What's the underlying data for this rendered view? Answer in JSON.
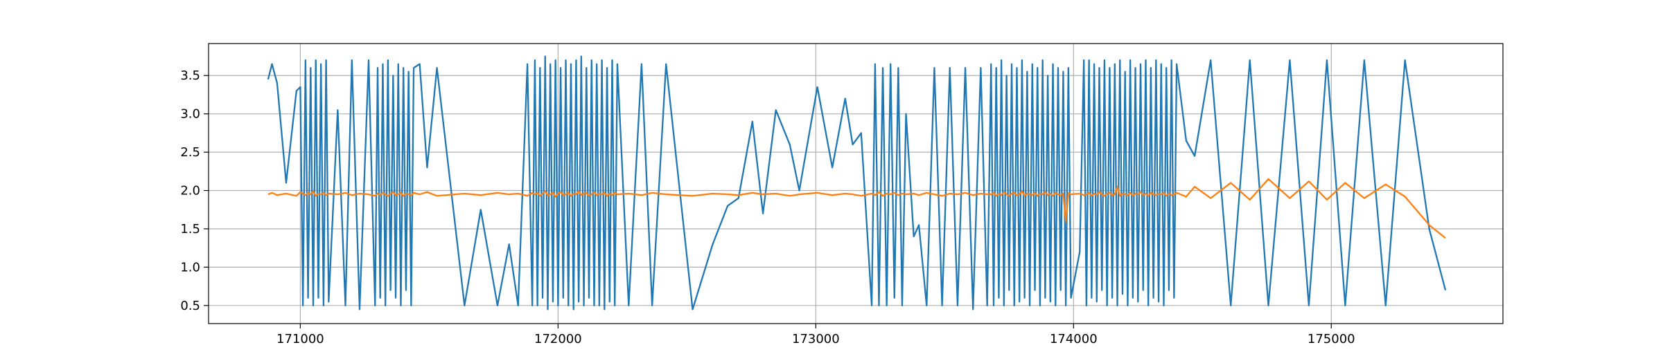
{
  "chart_data": {
    "type": "line",
    "x": [
      170875,
      170890,
      170910,
      170945,
      170985,
      171000,
      171010,
      171020,
      171030,
      171040,
      171050,
      171060,
      171070,
      171080,
      171090,
      171100,
      171110,
      171145,
      171175,
      171200,
      171230,
      171265,
      171290,
      171300,
      171310,
      171320,
      171330,
      171340,
      171350,
      171360,
      171370,
      171380,
      171390,
      171400,
      171410,
      171420,
      171430,
      171440,
      171463,
      171492,
      171530,
      171637,
      171700,
      171765,
      171810,
      171845,
      171881,
      171900,
      171910,
      171920,
      171930,
      171940,
      171950,
      171960,
      171970,
      171980,
      171990,
      172000,
      172010,
      172020,
      172030,
      172040,
      172050,
      172060,
      172070,
      172080,
      172090,
      172100,
      172110,
      172120,
      172130,
      172140,
      172150,
      172160,
      172170,
      172180,
      172190,
      172200,
      172210,
      172220,
      172230,
      172274,
      172324,
      172365,
      172419,
      172522,
      172600,
      172658,
      172700,
      172754,
      172795,
      172845,
      172899,
      172936,
      173006,
      173064,
      173114,
      173143,
      173176,
      173217,
      173230,
      173245,
      173260,
      173275,
      173290,
      173305,
      173320,
      173335,
      173350,
      173380,
      173400,
      173430,
      173460,
      173490,
      173520,
      173550,
      173580,
      173610,
      173640,
      173665,
      173680,
      173690,
      173700,
      173710,
      173720,
      173730,
      173740,
      173750,
      173760,
      173770,
      173780,
      173790,
      173800,
      173810,
      173820,
      173830,
      173840,
      173850,
      173860,
      173870,
      173880,
      173890,
      173900,
      173910,
      173920,
      173930,
      173940,
      173950,
      173960,
      173970,
      173980,
      173990,
      174024,
      174040,
      174050,
      174060,
      174070,
      174080,
      174090,
      174100,
      174110,
      174120,
      174130,
      174140,
      174150,
      174160,
      174170,
      174180,
      174190,
      174200,
      174210,
      174220,
      174230,
      174240,
      174250,
      174260,
      174270,
      174280,
      174290,
      174300,
      174310,
      174320,
      174330,
      174340,
      174350,
      174360,
      174370,
      174380,
      174390,
      174400,
      174437,
      174470,
      174532,
      174610,
      174684,
      174756,
      174839,
      174913,
      174983,
      175054,
      175128,
      175211,
      175286,
      175380,
      175443
    ],
    "series": [
      {
        "color": "#1f77b4",
        "values": [
          3.45,
          3.65,
          3.4,
          2.1,
          3.3,
          3.35,
          0.5,
          3.7,
          0.6,
          3.6,
          0.5,
          3.7,
          0.6,
          3.65,
          0.5,
          3.7,
          0.55,
          3.05,
          0.5,
          3.7,
          0.45,
          3.7,
          0.5,
          3.6,
          0.6,
          3.65,
          0.5,
          3.7,
          0.7,
          3.5,
          0.6,
          3.65,
          0.5,
          3.6,
          0.7,
          3.55,
          0.5,
          3.6,
          3.65,
          2.3,
          3.6,
          0.5,
          1.75,
          0.5,
          1.3,
          0.5,
          3.65,
          0.5,
          3.7,
          0.5,
          3.6,
          0.6,
          3.75,
          0.45,
          3.65,
          0.55,
          3.7,
          0.5,
          3.6,
          0.6,
          3.7,
          0.5,
          3.65,
          0.45,
          3.7,
          0.55,
          3.75,
          0.5,
          3.6,
          0.6,
          3.7,
          0.5,
          3.65,
          0.5,
          3.7,
          0.45,
          3.6,
          0.55,
          3.7,
          0.5,
          3.65,
          0.5,
          3.65,
          0.5,
          3.65,
          0.45,
          1.3,
          1.8,
          1.9,
          2.9,
          1.7,
          3.05,
          2.6,
          2.0,
          3.35,
          2.3,
          3.2,
          2.6,
          2.75,
          0.5,
          3.65,
          0.5,
          3.6,
          0.5,
          3.65,
          0.6,
          3.6,
          0.5,
          3.0,
          1.4,
          1.55,
          0.5,
          3.6,
          0.5,
          3.6,
          0.5,
          3.6,
          0.45,
          3.6,
          0.5,
          3.65,
          0.5,
          3.6,
          0.6,
          3.7,
          0.5,
          3.5,
          0.7,
          3.65,
          0.5,
          3.6,
          0.55,
          3.7,
          0.6,
          3.55,
          0.5,
          3.65,
          0.7,
          3.6,
          0.5,
          3.7,
          0.6,
          3.5,
          0.55,
          3.65,
          0.5,
          3.6,
          0.7,
          3.55,
          0.5,
          3.6,
          0.6,
          1.2,
          3.7,
          0.5,
          3.7,
          0.6,
          3.65,
          0.55,
          3.6,
          0.7,
          3.7,
          0.5,
          3.6,
          0.6,
          3.65,
          0.5,
          3.7,
          0.65,
          3.55,
          0.5,
          3.7,
          0.6,
          3.6,
          0.55,
          3.65,
          0.7,
          3.7,
          0.5,
          3.6,
          0.6,
          3.7,
          0.55,
          3.65,
          0.5,
          3.6,
          0.7,
          3.7,
          0.6,
          3.65,
          2.65,
          2.45,
          3.7,
          0.5,
          3.7,
          0.5,
          3.7,
          0.5,
          3.7,
          0.5,
          3.7,
          0.5,
          3.7,
          1.5,
          0.7
        ]
      },
      {
        "color": "#ff7f0e",
        "values": [
          1.95,
          1.97,
          1.94,
          1.96,
          1.93,
          1.98,
          1.96,
          1.94,
          1.97,
          1.95,
          1.99,
          1.93,
          1.96,
          1.95,
          1.97,
          1.94,
          1.96,
          1.95,
          1.97,
          1.94,
          1.96,
          1.95,
          1.93,
          1.96,
          1.94,
          1.97,
          1.95,
          1.93,
          1.96,
          1.98,
          1.94,
          1.95,
          1.97,
          1.93,
          1.96,
          1.95,
          1.94,
          1.97,
          1.95,
          1.98,
          1.93,
          1.96,
          1.94,
          1.97,
          1.95,
          1.96,
          1.93,
          1.97,
          1.95,
          1.97,
          1.93,
          1.96,
          1.99,
          1.94,
          1.95,
          1.97,
          1.92,
          1.96,
          1.98,
          1.94,
          1.95,
          1.97,
          1.93,
          1.96,
          1.95,
          1.99,
          1.94,
          1.96,
          1.97,
          1.93,
          1.95,
          1.98,
          1.94,
          1.96,
          1.95,
          1.97,
          1.93,
          1.96,
          1.94,
          1.97,
          1.95,
          1.96,
          1.94,
          1.97,
          1.95,
          1.93,
          1.96,
          1.95,
          1.94,
          1.97,
          1.95,
          1.96,
          1.93,
          1.95,
          1.97,
          1.94,
          1.96,
          1.95,
          1.93,
          1.96,
          1.94,
          1.98,
          1.93,
          1.96,
          1.95,
          1.97,
          1.94,
          1.96,
          1.95,
          1.96,
          1.94,
          1.97,
          1.95,
          1.93,
          1.96,
          1.95,
          1.97,
          1.94,
          1.96,
          1.95,
          1.95,
          1.97,
          1.93,
          1.96,
          1.94,
          1.98,
          1.95,
          1.93,
          1.96,
          1.97,
          1.94,
          1.95,
          1.99,
          1.93,
          1.96,
          1.95,
          1.94,
          1.97,
          1.93,
          1.96,
          1.95,
          1.98,
          1.94,
          1.96,
          1.93,
          1.97,
          1.95,
          1.94,
          1.96,
          1.6,
          1.97,
          1.95,
          1.96,
          1.94,
          1.95,
          1.97,
          1.93,
          1.96,
          1.94,
          1.98,
          1.95,
          1.93,
          1.96,
          1.97,
          1.94,
          1.95,
          2.05,
          1.93,
          1.96,
          1.95,
          1.94,
          1.97,
          1.93,
          1.96,
          1.95,
          1.98,
          1.94,
          1.96,
          1.93,
          1.97,
          1.95,
          1.94,
          1.96,
          1.95,
          1.97,
          1.93,
          1.96,
          1.94,
          1.95,
          1.97,
          1.92,
          2.05,
          1.9,
          2.1,
          1.88,
          2.15,
          1.9,
          2.12,
          1.88,
          2.1,
          1.9,
          2.08,
          1.92,
          1.55,
          1.38
        ]
      }
    ],
    "xlim": [
      170644,
      175666
    ],
    "xticks": [
      171000,
      172000,
      173000,
      174000,
      175000
    ],
    "ylim": [
      0.264,
      3.917
    ],
    "yticks": [
      0.5,
      {
        "value": 1,
        "label": "1.0"
      },
      1.5,
      {
        "value": 2,
        "label": "2.0"
      },
      2.5,
      {
        "value": 3,
        "label": "3.0"
      },
      3.5
    ],
    "grid": true
  }
}
